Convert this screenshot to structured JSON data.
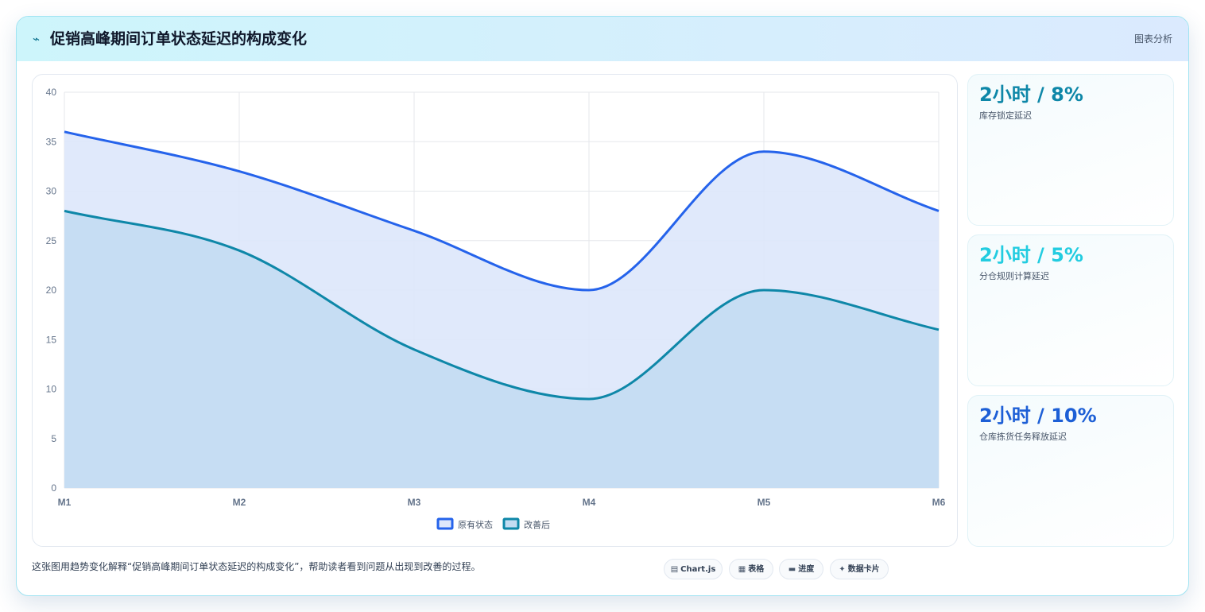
{
  "header": {
    "icon": "lightning-icon",
    "title": "促销高峰期间订单状态延迟的构成变化",
    "tag": "图表分析"
  },
  "chart_data": {
    "type": "area",
    "x": [
      "M1",
      "M2",
      "M3",
      "M4",
      "M5",
      "M6"
    ],
    "ylim": [
      0,
      40
    ],
    "yticks": [
      0,
      5,
      10,
      15,
      20,
      25,
      30,
      35,
      40
    ],
    "grid": true,
    "legend_position": "bottom",
    "series": [
      {
        "name": "原有状态",
        "values": [
          36,
          32,
          26,
          20,
          34,
          28
        ],
        "color": "#2563eb",
        "fill": "#dde7fb"
      },
      {
        "name": "改善后",
        "values": [
          28,
          24,
          14,
          9,
          20,
          16
        ],
        "color": "#0e87a8",
        "fill": "#c3dcf2"
      }
    ]
  },
  "stats": [
    {
      "value": "2小时 / 8%",
      "label": "库存锁定延迟",
      "color": "#0e87a8"
    },
    {
      "value": "2小时 / 5%",
      "label": "分仓规则计算延迟",
      "color": "#22cce0"
    },
    {
      "value": "2小时 / 10%",
      "label": "仓库拣货任务释放延迟",
      "color": "#1d5fd6"
    }
  ],
  "description": "这张图用趋势变化解释“促销高峰期间订单状态延迟的构成变化”，帮助读者看到问题从出现到改善的过程。",
  "footer_pills": [
    {
      "icon": "▤",
      "label": "Chart.js"
    },
    {
      "icon": "▦",
      "label": "表格"
    },
    {
      "icon": "▬",
      "label": "进度"
    },
    {
      "icon": "✦",
      "label": "数据卡片"
    }
  ]
}
